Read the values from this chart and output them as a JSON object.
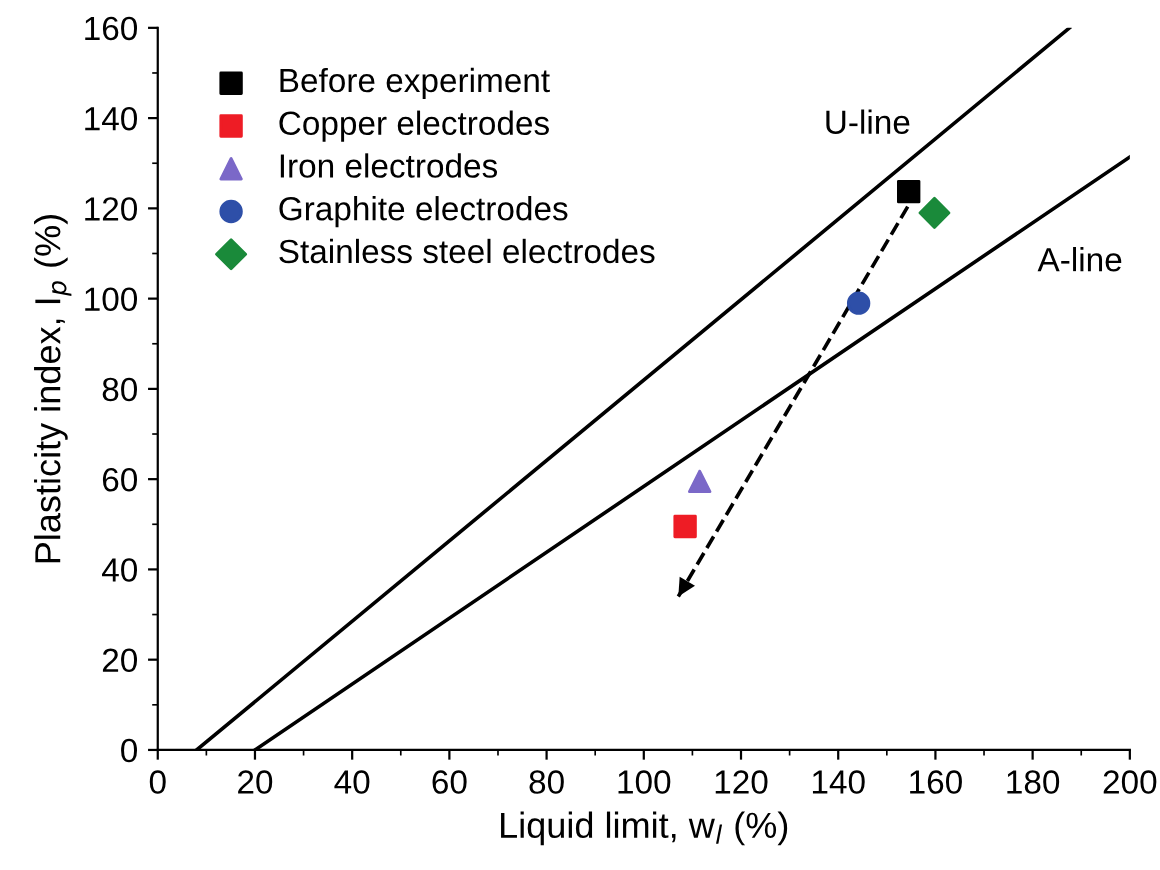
{
  "chart_data": {
    "type": "scatter",
    "xlabel": "Liquid limit, w$_{l}$ (%)",
    "ylabel": "Plasticity index, I$_{p}$ (%)",
    "xlim": [
      0,
      200
    ],
    "xticks": [
      0,
      20,
      40,
      60,
      80,
      100,
      120,
      140,
      160,
      180,
      200
    ],
    "ylim": [
      0,
      160
    ],
    "yticks": [
      0,
      20,
      40,
      60,
      80,
      100,
      120,
      140,
      160
    ],
    "grid": false,
    "legend": "top left",
    "series": [
      {
        "name": "Before experiment",
        "color": "#000000",
        "marker": "square",
        "x": [
          154.5
        ],
        "values": [
          123.7
        ]
      },
      {
        "name": "Copper electrodes",
        "color": "#ee1c25",
        "marker": "square",
        "x": [
          108.5
        ],
        "values": [
          49.5
        ]
      },
      {
        "name": "Iron electrodes",
        "color": "#7b68c8",
        "marker": "triangle",
        "x": [
          111.5
        ],
        "values": [
          59.5
        ]
      },
      {
        "name": "Graphite electrodes",
        "color": "#2e4fa8",
        "marker": "circle",
        "x": [
          144.2
        ],
        "values": [
          99
        ]
      },
      {
        "name": "Stainless steel electrodes",
        "color": "#1a8a3a",
        "marker": "diamond",
        "x": [
          159.8
        ],
        "values": [
          119
        ]
      },
      {
        "type": "line",
        "name": "U-line",
        "color": "#000000",
        "line_style": "solid",
        "marker": "none",
        "x": [
          8,
          187.6
        ],
        "values": [
          0,
          160
        ]
      },
      {
        "type": "line",
        "name": "A-line",
        "color": "#000000",
        "line_style": "solid",
        "marker": "none",
        "x": [
          20,
          200
        ],
        "values": [
          0,
          131.4
        ]
      },
      {
        "type": "line",
        "color": "#000000",
        "line_style": "dashed",
        "marker": "none",
        "x": [
          154.3,
          107.1
        ],
        "values": [
          120.4,
          34
        ]
      }
    ]
  }
}
